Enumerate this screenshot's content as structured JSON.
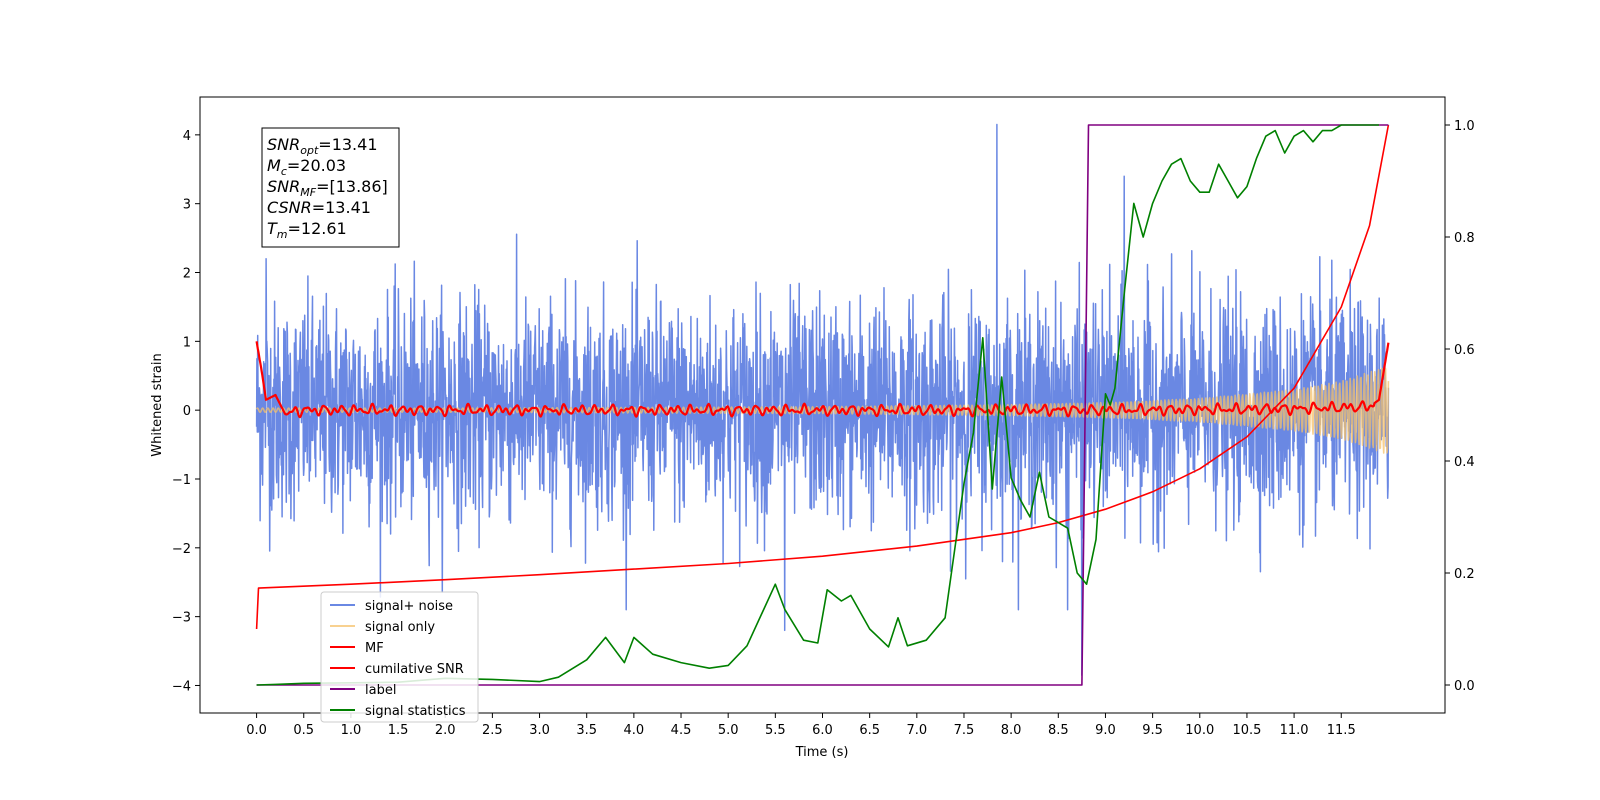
{
  "chart_data": {
    "type": "line",
    "xlabel": "Time (s)",
    "ylabel": "Whitened strain",
    "xlim": [
      -0.6,
      12.6
    ],
    "ylim": [
      -4.4,
      4.55
    ],
    "ylim_right": [
      -0.05,
      1.05
    ],
    "x_ticks": [
      "0.0",
      "0.5",
      "1.0",
      "1.5",
      "2.0",
      "2.5",
      "3.0",
      "3.5",
      "4.0",
      "4.5",
      "5.0",
      "5.5",
      "6.0",
      "6.5",
      "7.0",
      "7.5",
      "8.0",
      "8.5",
      "9.0",
      "9.5",
      "10.0",
      "10.5",
      "11.0",
      "11.5"
    ],
    "y_ticks": [
      "−4",
      "−3",
      "−2",
      "−1",
      "0",
      "1",
      "2",
      "3",
      "4"
    ],
    "y_ticks_right": [
      "0.0",
      "0.2",
      "0.4",
      "0.6",
      "0.8",
      "1.0"
    ],
    "grid": false,
    "legend_position": "lower-left",
    "annotation": {
      "lines": [
        {
          "sym": "SNR",
          "sub": "opt",
          "value": "=13.41"
        },
        {
          "sym": "M",
          "sub": "c",
          "value": "=20.03"
        },
        {
          "sym": "SNR",
          "sub": "MF",
          "value": "=[13.86]"
        },
        {
          "sym": "CSNR",
          "sub": "",
          "value": "=13.41"
        },
        {
          "sym": "T",
          "sub": "m",
          "value": "=12.61"
        }
      ]
    },
    "series": [
      {
        "name": "signal+ noise",
        "color": "#6a88e3",
        "axis": "left",
        "kind": "noise",
        "envelope": {
          "x": [
            0.0,
            12.0
          ],
          "range": [
            -2.9,
            4.15
          ]
        },
        "spikes": [
          [
            0.1,
            2.2
          ],
          [
            7.85,
            4.15
          ],
          [
            8.75,
            -3.85
          ],
          [
            8.6,
            -2.9
          ],
          [
            5.6,
            -3.2
          ],
          [
            9.2,
            3.4
          ]
        ]
      },
      {
        "name": "signal only",
        "color": "#f5c26b",
        "axis": "left",
        "kind": "chirp",
        "x": [
          0.0,
          2.0,
          4.0,
          6.0,
          8.0,
          9.0,
          10.0,
          11.0,
          11.5,
          11.9,
          12.0
        ],
        "amplitude": [
          0.03,
          0.03,
          0.04,
          0.05,
          0.08,
          0.11,
          0.17,
          0.3,
          0.42,
          0.6,
          0.65
        ]
      },
      {
        "name": "MF",
        "color": "#ff0000",
        "axis": "left",
        "kind": "wiggle",
        "x": [
          0.0,
          0.05,
          0.1,
          0.2,
          0.3,
          0.5,
          1.0,
          3.0,
          6.0,
          9.0,
          11.0,
          11.8,
          11.9,
          12.0
        ],
        "y": [
          1.0,
          0.6,
          0.15,
          0.22,
          -0.05,
          0.0,
          0.0,
          0.0,
          0.0,
          0.0,
          0.02,
          0.05,
          0.15,
          0.98
        ]
      },
      {
        "name": "cumilative SNR",
        "color": "#ff0000",
        "axis": "right",
        "x": [
          0.0,
          0.02,
          1.0,
          2.0,
          3.0,
          4.0,
          5.0,
          6.0,
          7.0,
          8.0,
          8.5,
          9.0,
          9.5,
          10.0,
          10.5,
          11.0,
          11.5,
          11.8,
          12.0
        ],
        "y": [
          0.1,
          0.173,
          0.18,
          0.188,
          0.197,
          0.207,
          0.217,
          0.23,
          0.248,
          0.272,
          0.29,
          0.314,
          0.345,
          0.386,
          0.443,
          0.53,
          0.675,
          0.82,
          1.0
        ]
      },
      {
        "name": "label",
        "color": "#800080",
        "axis": "right",
        "x": [
          0.0,
          8.75,
          8.82,
          12.0
        ],
        "y": [
          0.0,
          0.0,
          1.0,
          1.0
        ]
      },
      {
        "name": "signal statistics",
        "color": "#008000",
        "axis": "right",
        "x": [
          0.0,
          0.2,
          0.5,
          1.0,
          1.5,
          2.0,
          2.5,
          3.0,
          3.2,
          3.5,
          3.7,
          3.9,
          4.0,
          4.2,
          4.5,
          4.8,
          5.0,
          5.2,
          5.5,
          5.6,
          5.8,
          5.95,
          6.05,
          6.2,
          6.3,
          6.5,
          6.7,
          6.8,
          6.9,
          7.1,
          7.3,
          7.5,
          7.6,
          7.7,
          7.8,
          7.9,
          8.0,
          8.1,
          8.2,
          8.3,
          8.4,
          8.5,
          8.6,
          8.7,
          8.8,
          8.9,
          9.0,
          9.05,
          9.1,
          9.2,
          9.3,
          9.4,
          9.5,
          9.6,
          9.7,
          9.8,
          9.9,
          10.0,
          10.1,
          10.2,
          10.3,
          10.4,
          10.5,
          10.6,
          10.7,
          10.8,
          10.9,
          11.0,
          11.1,
          11.2,
          11.3,
          11.4,
          11.5,
          11.7,
          11.9
        ],
        "y": [
          0.0,
          0.001,
          0.003,
          0.004,
          0.005,
          0.012,
          0.01,
          0.006,
          0.014,
          0.045,
          0.085,
          0.04,
          0.085,
          0.055,
          0.04,
          0.03,
          0.035,
          0.07,
          0.18,
          0.135,
          0.08,
          0.075,
          0.17,
          0.15,
          0.16,
          0.1,
          0.068,
          0.12,
          0.07,
          0.08,
          0.12,
          0.36,
          0.45,
          0.62,
          0.35,
          0.55,
          0.37,
          0.33,
          0.3,
          0.38,
          0.3,
          0.29,
          0.28,
          0.2,
          0.18,
          0.26,
          0.52,
          0.5,
          0.53,
          0.7,
          0.86,
          0.8,
          0.86,
          0.9,
          0.93,
          0.94,
          0.9,
          0.88,
          0.88,
          0.93,
          0.9,
          0.87,
          0.89,
          0.94,
          0.98,
          0.99,
          0.95,
          0.98,
          0.99,
          0.97,
          0.99,
          0.99,
          1.0,
          1.0,
          1.0
        ]
      }
    ]
  }
}
